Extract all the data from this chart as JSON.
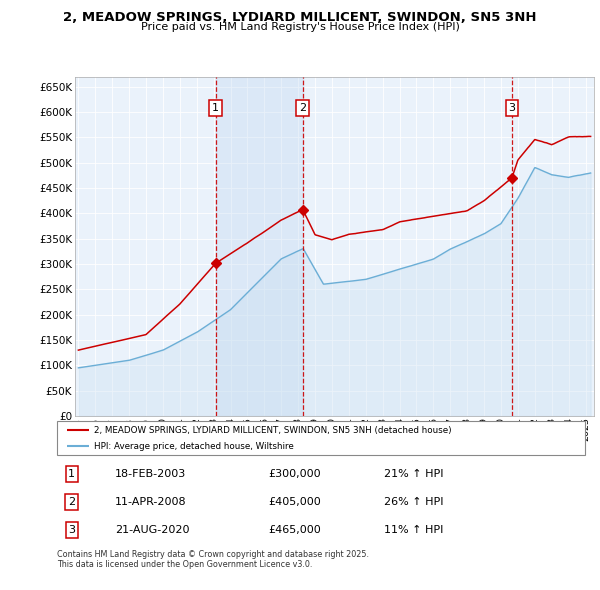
{
  "title": "2, MEADOW SPRINGS, LYDIARD MILLICENT, SWINDON, SN5 3NH",
  "subtitle": "Price paid vs. HM Land Registry's House Price Index (HPI)",
  "ylim": [
    0,
    670000
  ],
  "yticks": [
    0,
    50000,
    100000,
    150000,
    200000,
    250000,
    300000,
    350000,
    400000,
    450000,
    500000,
    550000,
    600000,
    650000
  ],
  "xlim_start": 1994.8,
  "xlim_end": 2025.5,
  "legend_line1": "2, MEADOW SPRINGS, LYDIARD MILLICENT, SWINDON, SN5 3NH (detached house)",
  "legend_line2": "HPI: Average price, detached house, Wiltshire",
  "sale_color": "#cc0000",
  "hpi_color": "#6baed6",
  "hpi_fill_color": "#c8dff0",
  "band_color": "#dce8f5",
  "transactions": [
    {
      "date": 2003.12,
      "price": 300000,
      "label": "1"
    },
    {
      "date": 2008.27,
      "price": 405000,
      "label": "2"
    },
    {
      "date": 2020.64,
      "price": 465000,
      "label": "3"
    }
  ],
  "transaction_dates": [
    {
      "date_str": "18-FEB-2003",
      "price": 300000,
      "hpi_pct": "21%",
      "label": "1"
    },
    {
      "date_str": "11-APR-2008",
      "price": 405000,
      "hpi_pct": "26%",
      "label": "2"
    },
    {
      "date_str": "21-AUG-2020",
      "price": 465000,
      "hpi_pct": "11%",
      "label": "3"
    }
  ],
  "footer": "Contains HM Land Registry data © Crown copyright and database right 2025.\nThis data is licensed under the Open Government Licence v3.0.",
  "background_color": "#ffffff",
  "plot_bg_color": "#eaf2fb"
}
